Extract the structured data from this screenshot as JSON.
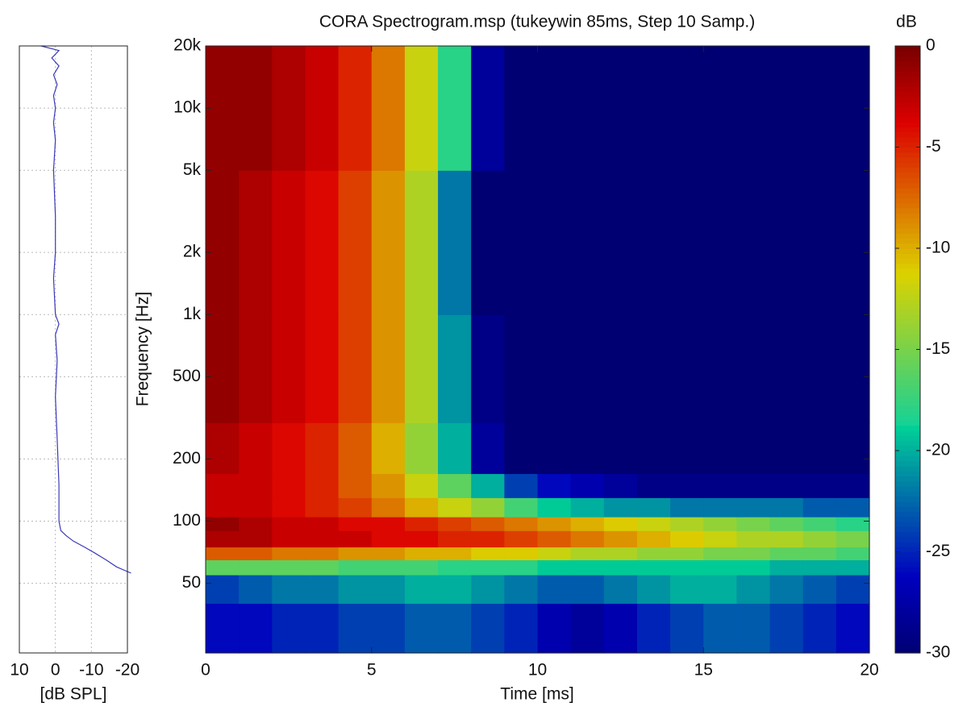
{
  "chart_data": [
    {
      "type": "heatmap",
      "title": "CORA Spectrogram.msp (tukeywin 85ms, Step 10 Samp.)",
      "x_label": "Time [ms]",
      "y_label": "Frequency [Hz]",
      "xlim": [
        0,
        20
      ],
      "xticks": [
        0,
        5,
        10,
        15,
        20
      ],
      "ylim": [
        23,
        20000
      ],
      "y_scale": "log",
      "yticks": [
        {
          "value": 20000,
          "label": "20k"
        },
        {
          "value": 10000,
          "label": "10k"
        },
        {
          "value": 5000,
          "label": "5k"
        },
        {
          "value": 2000,
          "label": "2k"
        },
        {
          "value": 1000,
          "label": "1k"
        },
        500,
        200,
        100,
        50
      ],
      "x_bins": [
        0,
        1,
        2,
        3,
        4,
        5,
        6,
        7,
        8,
        9,
        10,
        11,
        12,
        13,
        14,
        15,
        16,
        17,
        18,
        19,
        20
      ],
      "y_bins": [
        23,
        40,
        55,
        65,
        75,
        90,
        105,
        130,
        170,
        300,
        1000,
        5000,
        20000
      ],
      "z": [
        [
          -26,
          -26,
          -25,
          -25,
          -24,
          -24,
          -23,
          -23,
          -24,
          -25,
          -27,
          -28,
          -27,
          -25,
          -24,
          -23,
          -23,
          -24,
          -25,
          -26
        ],
        [
          -24,
          -23,
          -22,
          -22,
          -21,
          -21,
          -20,
          -20,
          -21,
          -22,
          -23,
          -23,
          -22,
          -21,
          -20,
          -20,
          -21,
          -22,
          -23,
          -24
        ],
        [
          -16,
          -16,
          -16,
          -16,
          -17,
          -17,
          -17,
          -18,
          -18,
          -18,
          -19,
          -19,
          -19,
          -19,
          -19,
          -19,
          -19,
          -20,
          -20,
          -20
        ],
        [
          -7,
          -7,
          -8,
          -8,
          -9,
          -9,
          -10,
          -10,
          -11,
          -11,
          -12,
          -13,
          -13,
          -14,
          -14,
          -15,
          -15,
          -16,
          -16,
          -17
        ],
        [
          -2,
          -2,
          -3,
          -3,
          -3,
          -4,
          -4,
          -5,
          -5,
          -6,
          -7,
          -8,
          -9,
          -10,
          -11,
          -12,
          -13,
          -13,
          -14,
          -15
        ],
        [
          -1,
          -2,
          -3,
          -3,
          -4,
          -4,
          -5,
          -6,
          -7,
          -8,
          -9,
          -10,
          -11,
          -12,
          -13,
          -14,
          -15,
          -16,
          -17,
          -18
        ],
        [
          -3,
          -3,
          -4,
          -5,
          -6,
          -8,
          -10,
          -12,
          -14,
          -17,
          -19,
          -20,
          -21,
          -21,
          -22,
          -22,
          -22,
          -22,
          -23,
          -23
        ],
        [
          -3,
          -3,
          -4,
          -5,
          -7,
          -9,
          -12,
          -16,
          -20,
          -24,
          -26,
          -27,
          -28,
          -29,
          -29,
          -29,
          -29,
          -29,
          -29,
          -29
        ],
        [
          -2,
          -3,
          -4,
          -5,
          -7,
          -10,
          -14,
          -20,
          -28,
          -30,
          -30,
          -30,
          -30,
          -30,
          -30,
          -30,
          -30,
          -30,
          -30,
          -30
        ],
        [
          -1,
          -2,
          -3,
          -4,
          -6,
          -9,
          -13,
          -21,
          -29,
          -30,
          -30,
          -30,
          -30,
          -30,
          -30,
          -30,
          -30,
          -30,
          -30,
          -30
        ],
        [
          -1,
          -2,
          -3,
          -4,
          -6,
          -9,
          -13,
          -22,
          -30,
          -30,
          -30,
          -30,
          -30,
          -30,
          -30,
          -30,
          -30,
          -30,
          -30,
          -30
        ],
        [
          -1,
          -1,
          -2,
          -3,
          -5,
          -8,
          -12,
          -18,
          -28,
          -30,
          -30,
          -30,
          -30,
          -30,
          -30,
          -30,
          -30,
          -30,
          -30,
          -30
        ]
      ],
      "colorbar_label": "dB",
      "zlim": [
        -30,
        0
      ],
      "zticks": [
        0,
        -5,
        -10,
        -15,
        -20,
        -25,
        -30
      ]
    },
    {
      "type": "line",
      "orientation": "vertical",
      "x_label": "[dB SPL]",
      "xlim": [
        10,
        -20
      ],
      "xticks": [
        10,
        0,
        -10,
        -20
      ],
      "ylim": [
        23,
        20000
      ],
      "y_scale": "log",
      "grid": true,
      "y": [
        20000,
        19000,
        17500,
        16000,
        14500,
        13000,
        11500,
        10000,
        8500,
        7000,
        5000,
        3000,
        2000,
        1500,
        1000,
        900,
        800,
        600,
        400,
        250,
        150,
        100,
        90,
        85,
        80,
        75,
        70,
        65,
        60,
        56
      ],
      "series": [
        {
          "color": "#3a3ab8",
          "values": [
            4,
            -1,
            1,
            -1,
            0.5,
            -0.5,
            0.5,
            0,
            0.5,
            0,
            0.5,
            0,
            0,
            0.5,
            0,
            -1,
            0,
            -0.5,
            0,
            -0.5,
            -1,
            -1,
            -1.5,
            -3,
            -5,
            -8,
            -11,
            -14,
            -17,
            -21
          ]
        }
      ]
    }
  ]
}
